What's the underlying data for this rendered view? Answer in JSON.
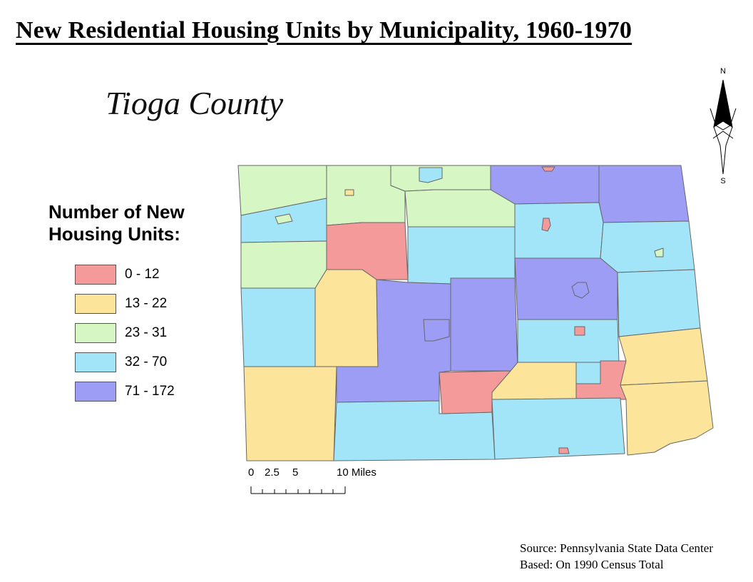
{
  "title": "New Residential Housing Units by Municipality, 1960-1970",
  "county": "Tioga County",
  "legend": {
    "title": "Number of New Housing Units:",
    "classes": [
      {
        "label": "0 - 12",
        "color": "#f59a9a"
      },
      {
        "label": "13 - 22",
        "color": "#fce49a"
      },
      {
        "label": "23 - 31",
        "color": "#d6f7c4"
      },
      {
        "label": "32 - 70",
        "color": "#a2e5f8"
      },
      {
        "label": "71 - 172",
        "color": "#9d9df5"
      }
    ]
  },
  "north_arrow": {
    "n": "N",
    "s": "S"
  },
  "scale": {
    "labels": [
      "0",
      "2.5",
      "5",
      "10 Miles"
    ],
    "unit": "Miles"
  },
  "source": {
    "line1": "Source: Pennsylvania State Data Center",
    "line2": "Based: On 1990 Census Total"
  }
}
